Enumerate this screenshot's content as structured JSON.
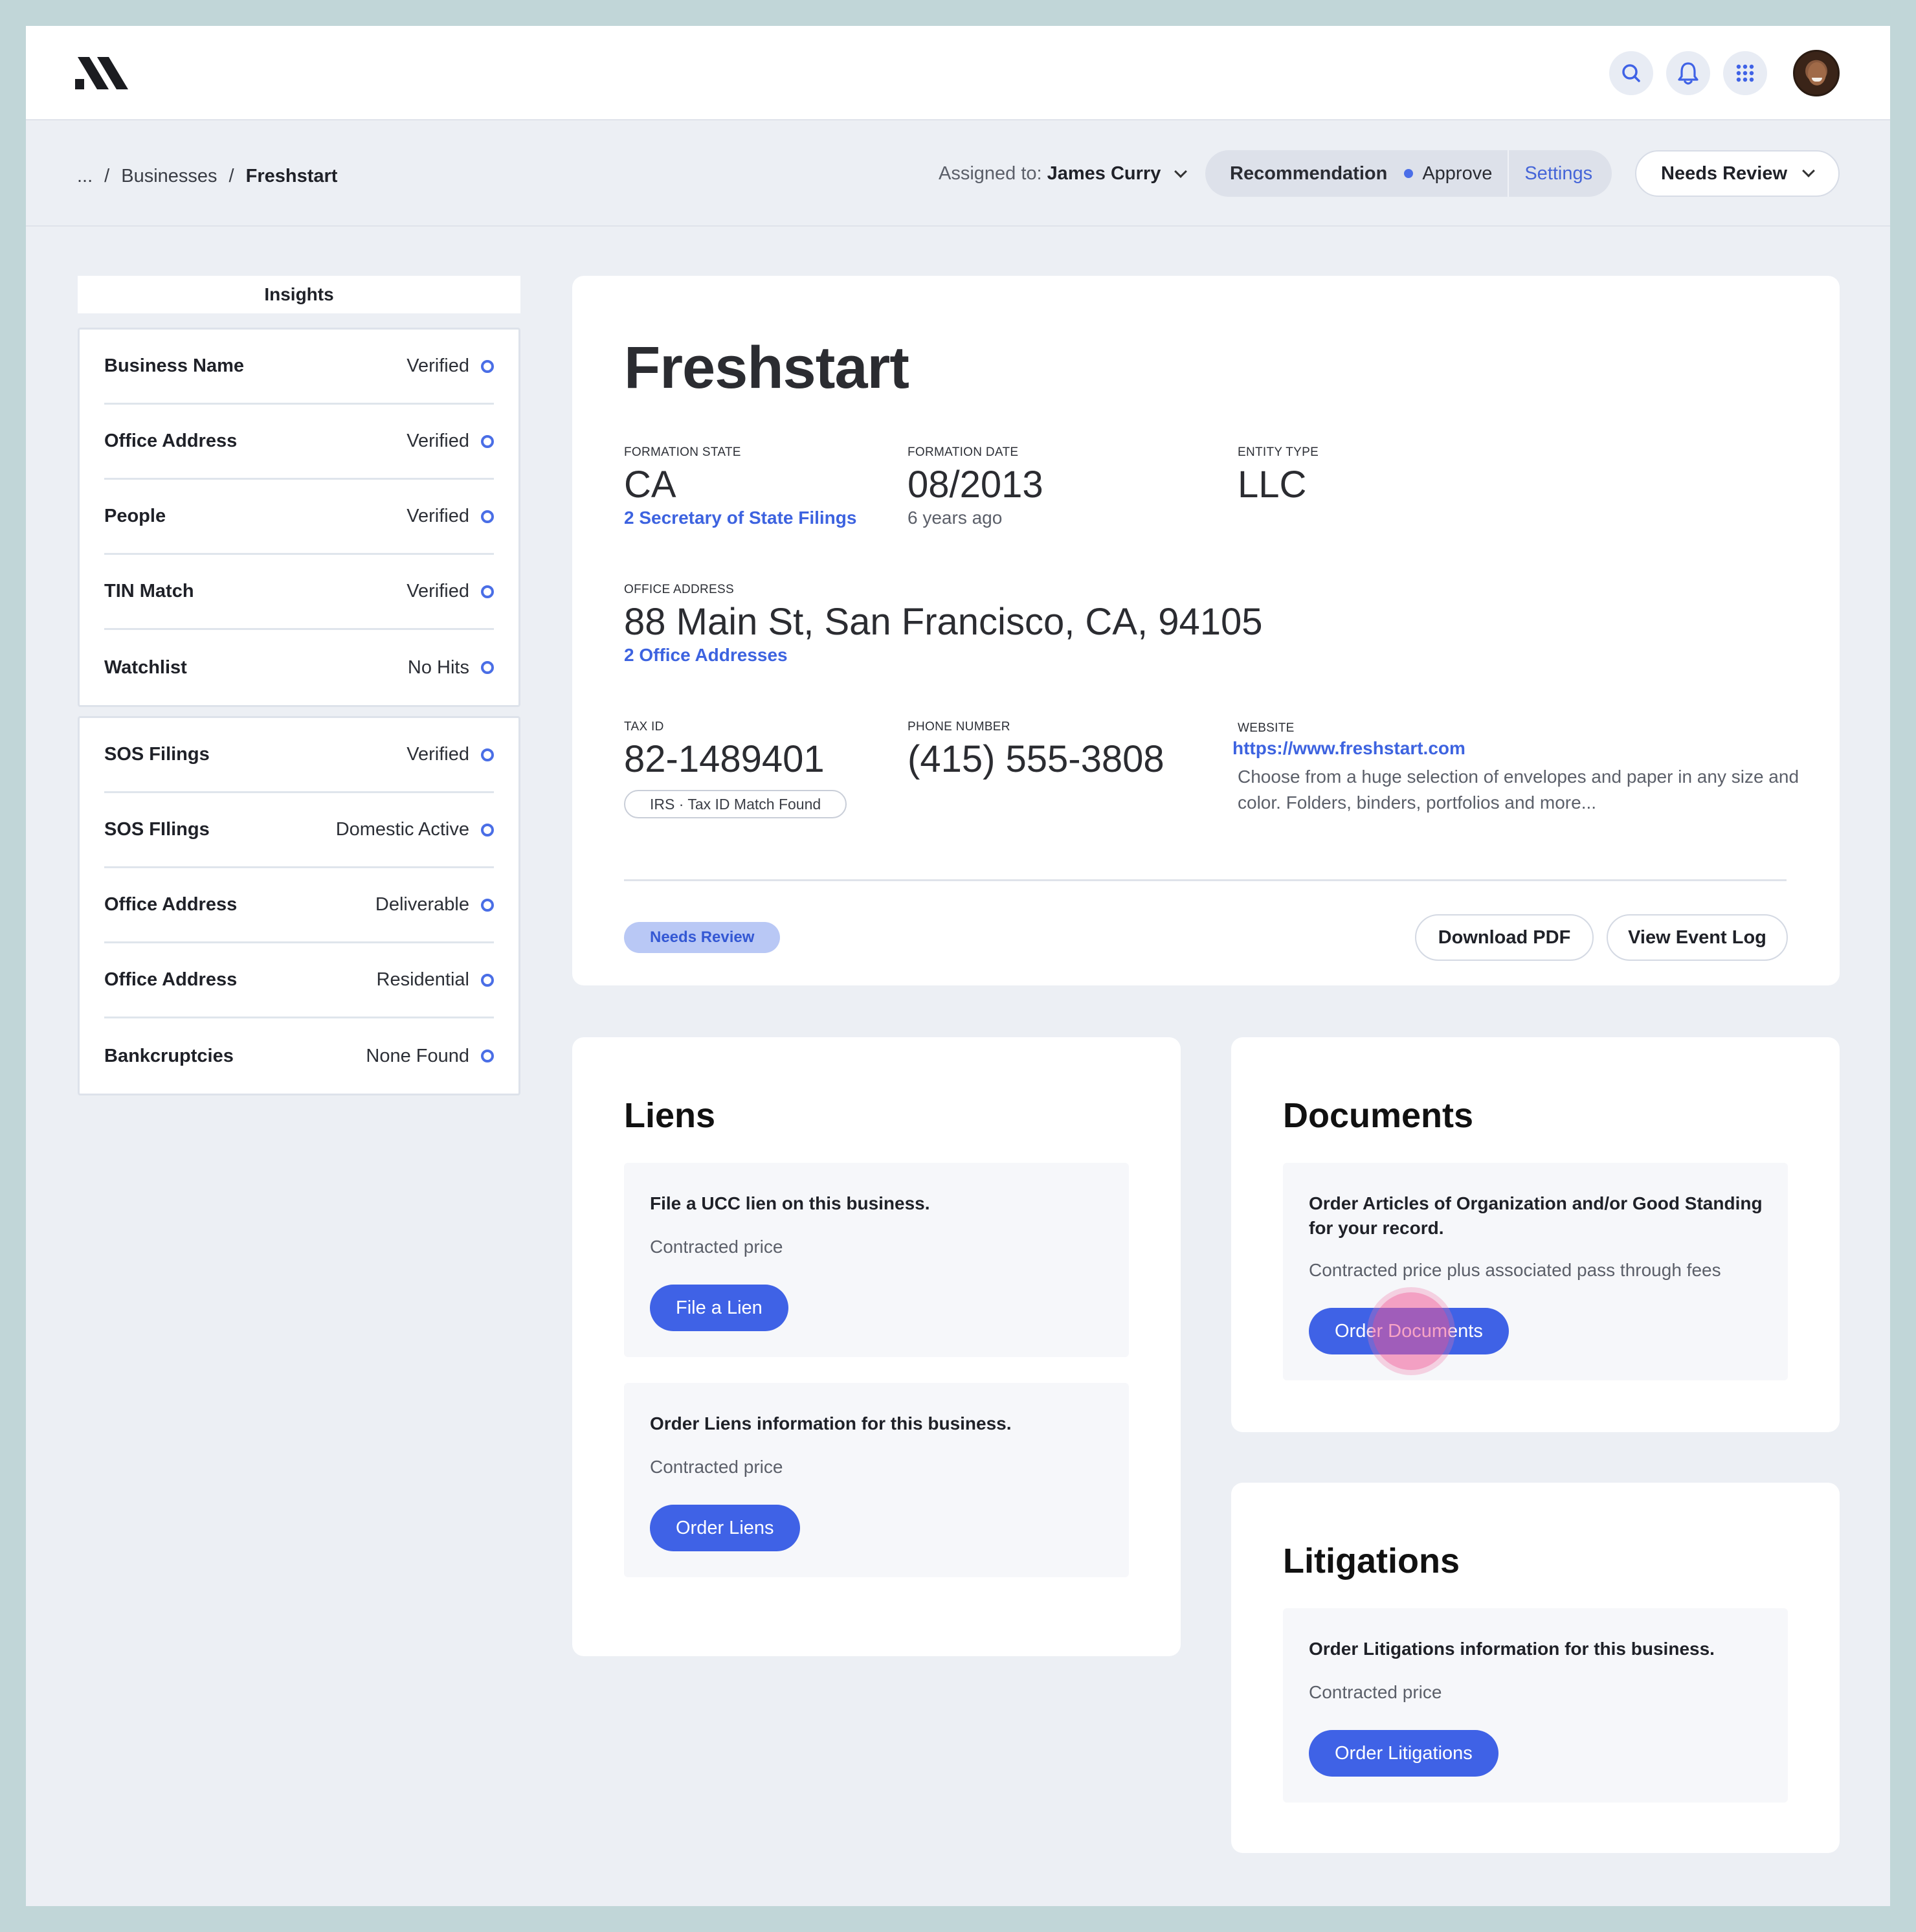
{
  "topbar": {
    "icons": [
      "logo-icon",
      "search-icon",
      "bell-icon",
      "apps-grid-icon",
      "avatar"
    ]
  },
  "breadcrumb": {
    "ellipsis": "...",
    "sep": "/",
    "items": [
      "Businesses",
      "Freshstart"
    ]
  },
  "assigned": {
    "label": "Assigned to:",
    "name": "James Curry"
  },
  "recommendation": {
    "label": "Recommendation",
    "value": "Approve",
    "settings": "Settings"
  },
  "status_dropdown": {
    "value": "Needs Review"
  },
  "insights": {
    "title": "Insights",
    "group1": [
      {
        "label": "Business Name",
        "value": "Verified"
      },
      {
        "label": "Office Address",
        "value": "Verified"
      },
      {
        "label": "People",
        "value": "Verified"
      },
      {
        "label": "TIN Match",
        "value": "Verified"
      },
      {
        "label": "Watchlist",
        "value": "No Hits"
      }
    ],
    "group2": [
      {
        "label": "SOS Filings",
        "value": "Verified"
      },
      {
        "label": "SOS FIlings",
        "value": "Domestic Active"
      },
      {
        "label": "Office Address",
        "value": "Deliverable"
      },
      {
        "label": "Office Address",
        "value": "Residential"
      },
      {
        "label": "Bankcruptcies",
        "value": "None Found"
      }
    ]
  },
  "business": {
    "name": "Freshstart",
    "formation_state": {
      "caption": "Formation State",
      "value": "CA",
      "link": "2 Secretary of State Filings"
    },
    "formation_date": {
      "caption": "Formation Date",
      "value": "08/2013",
      "sub": "6 years ago"
    },
    "entity_type": {
      "caption": "Entity Type",
      "value": "LLC"
    },
    "office_address": {
      "caption": "Office Address",
      "value": "88 Main St, San Francisco, CA, 94105",
      "link": "2 Office Addresses"
    },
    "tax_id": {
      "caption": "Tax ID",
      "value": "82-1489401",
      "pill": "IRS · Tax ID Match Found"
    },
    "phone": {
      "caption": "Phone Number",
      "value": "(415) 555-3808"
    },
    "website": {
      "caption": "Website",
      "url": "https://www.freshstart.com",
      "description": "Choose from a huge selection of envelopes and paper in any size and color. Folders, binders, portfolios and more..."
    },
    "status_badge": "Needs Review",
    "download_pdf": "Download PDF",
    "view_event_log": "View Event Log"
  },
  "liens": {
    "title": "Liens",
    "panels": [
      {
        "heading": "File a UCC lien on this business.",
        "price": "Contracted price",
        "button": "File a Lien"
      },
      {
        "heading": "Order Liens information for this business.",
        "price": "Contracted price",
        "button": "Order Liens"
      }
    ]
  },
  "documents": {
    "title": "Documents",
    "heading": "Order Articles of Organization and/or Good Standing for your record.",
    "price": "Contracted price plus associated pass through fees",
    "button": "Order Documents"
  },
  "litigations": {
    "title": "Litigations",
    "heading": "Order Litigations information for this business.",
    "price": "Contracted price",
    "button": "Order Litigations"
  },
  "colors": {
    "accent": "#3f62e6",
    "link": "#3d63e0",
    "frame_bg": "#eceff4",
    "outer_bg": "#c1d6d8",
    "badge_bg": "#b9c8f5",
    "click_indicator": "#f05a96"
  }
}
